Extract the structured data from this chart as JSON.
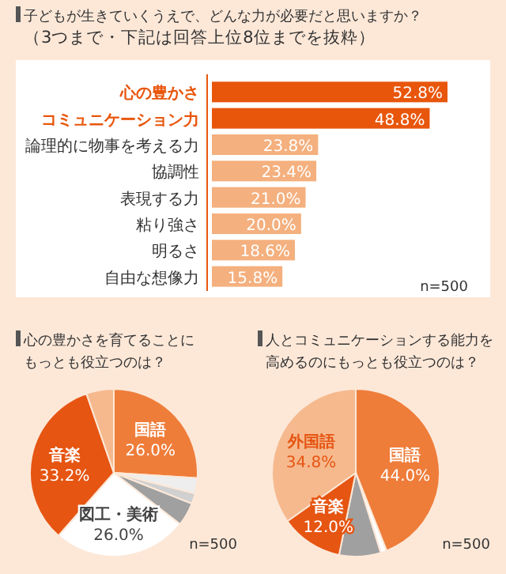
{
  "chart_data": [
    {
      "type": "bar",
      "orientation": "horizontal",
      "title": "子どもが生きていくうえで、どんな力が必要だと思いますか？",
      "subtitle": "（3つまで・下記は回答上位8位までを抜粋）",
      "categories": [
        "心の豊かさ",
        "コミュニケーション力",
        "論理的に物事を考える力",
        "協調性",
        "表現する力",
        "粘り強さ",
        "明るさ",
        "自由な想像力"
      ],
      "values": [
        52.8,
        48.8,
        23.8,
        23.4,
        21.0,
        20.0,
        18.6,
        15.8
      ],
      "value_labels": [
        "52.8%",
        "48.8%",
        "23.8%",
        "23.4%",
        "21.0%",
        "20.0%",
        "18.6%",
        "15.8%"
      ],
      "colors": [
        "#e8560c",
        "#e8560c",
        "#f4b07e",
        "#f4b07e",
        "#f4b07e",
        "#f4b07e",
        "#f4b07e",
        "#f4b07e"
      ],
      "annotations": [
        "n=500"
      ]
    },
    {
      "type": "pie",
      "title": "心の豊かさを育てることにもっとも役立つのは？",
      "categories": [
        "国語",
        null,
        null,
        null,
        "図工・美術",
        "音楽",
        null
      ],
      "values": [
        26.0,
        3.0,
        2.0,
        4.5,
        26.0,
        33.2,
        5.3
      ],
      "value_labels": [
        "26.0%",
        null,
        null,
        null,
        "26.0%",
        "33.2%",
        null
      ],
      "colors": [
        "#ef7d3a",
        "#eeeeee",
        "#d0d0d0",
        "#a0a0a0",
        "#ffffff",
        "#e65512",
        "#f6b98e"
      ],
      "annotations": [
        "n=500"
      ]
    },
    {
      "type": "pie",
      "title": "人とコミュニケーションする能力を高めるのにもっとも役立つのは？",
      "categories": [
        "国語",
        null,
        null,
        "音楽",
        "外国語"
      ],
      "values": [
        44.0,
        1.2,
        8.0,
        12.0,
        34.8
      ],
      "value_labels": [
        "44.0%",
        null,
        null,
        "12.0%",
        "34.8%"
      ],
      "colors": [
        "#ef7d3a",
        "#ffffff",
        "#a0a0a0",
        "#e65512",
        "#f6b98e"
      ],
      "annotations": [
        "n=500"
      ]
    }
  ]
}
